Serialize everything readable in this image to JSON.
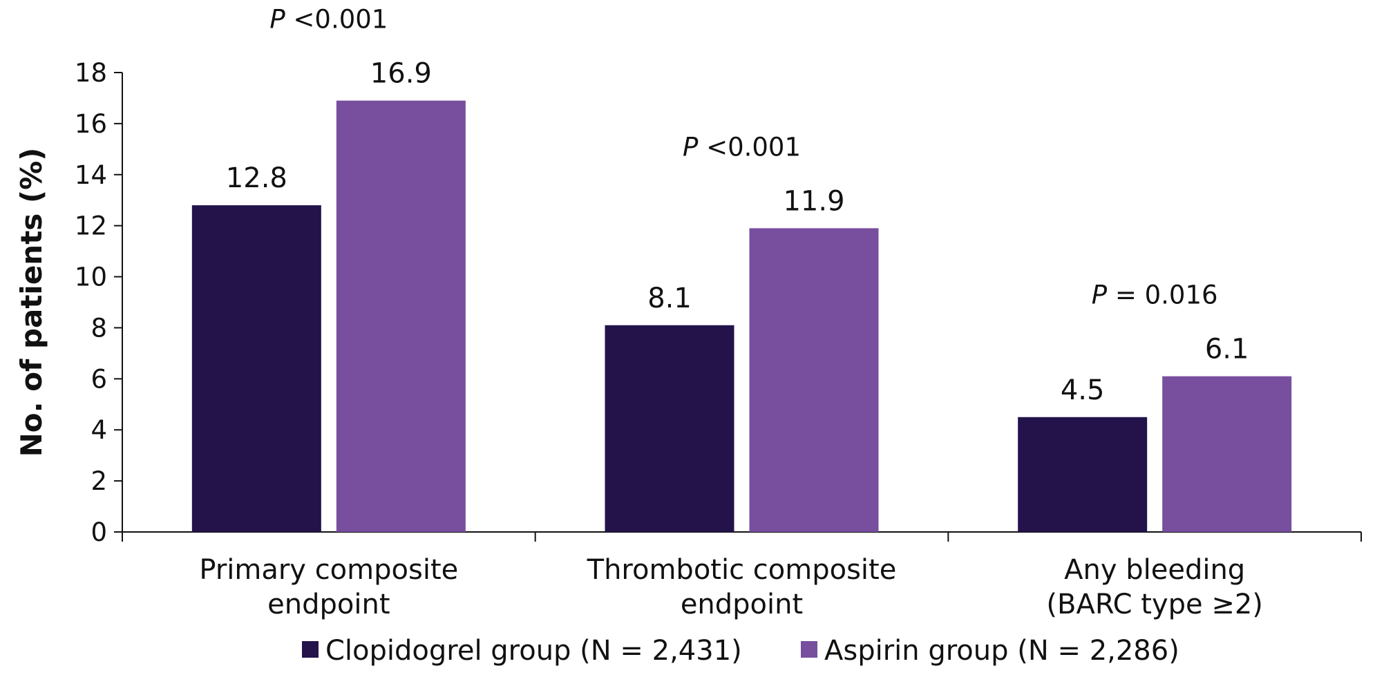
{
  "chart_data": {
    "type": "bar",
    "ylabel": "No. of patients (%)",
    "xlabel": "",
    "ylim": [
      0,
      18
    ],
    "yticks": [
      0,
      2,
      4,
      6,
      8,
      10,
      12,
      14,
      16,
      18
    ],
    "grid": false,
    "legend_position": "bottom",
    "categories": [
      [
        "Primary composite",
        "endpoint"
      ],
      [
        "Thrombotic composite",
        "endpoint"
      ],
      [
        "Any bleeding",
        "(BARC type ≥2)"
      ]
    ],
    "series": [
      {
        "name": "Clopidogrel group (N = 2,431)",
        "color": "#23134a",
        "values": [
          12.8,
          8.1,
          4.5
        ]
      },
      {
        "name": "Aspirin group (N = 2,286)",
        "color": "#774f9e",
        "values": [
          16.9,
          11.9,
          6.1
        ]
      }
    ],
    "value_labels": [
      [
        "12.8",
        "8.1",
        "4.5"
      ],
      [
        "16.9",
        "11.9",
        "6.1"
      ]
    ],
    "p_values": [
      {
        "italic": "P",
        "rest": " <0.001"
      },
      {
        "italic": "P",
        "rest": " <0.001"
      },
      {
        "italic": "P",
        "rest": " = 0.016"
      }
    ]
  }
}
